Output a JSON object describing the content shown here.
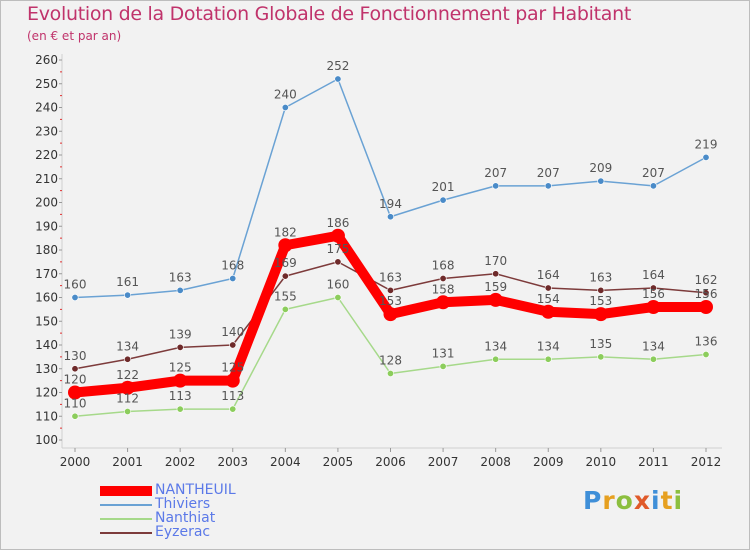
{
  "title": "Evolution de la Dotation Globale de Fonctionnement par Habitant",
  "subtitle": "(en € et par an)",
  "brand": {
    "text": "Proxiti",
    "letters": [
      {
        "ch": "P",
        "color": "#3f8fd8"
      },
      {
        "ch": "r",
        "color": "#e6a020"
      },
      {
        "ch": "o",
        "color": "#8cbf3f"
      },
      {
        "ch": "x",
        "color": "#e05a2a"
      },
      {
        "ch": "i",
        "color": "#3f8fd8"
      },
      {
        "ch": "t",
        "color": "#e6a020"
      },
      {
        "ch": "i",
        "color": "#8cbf3f"
      }
    ]
  },
  "chart_data": {
    "type": "line",
    "title": "Evolution de la Dotation Globale de Fonctionnement par Habitant",
    "subtitle": "(en € et par an)",
    "xlabel": "",
    "ylabel": "",
    "ylim": [
      100,
      260
    ],
    "ytick_step": 10,
    "grid": false,
    "legend_position": "bottom-left",
    "categories": [
      "2000",
      "2001",
      "2002",
      "2003",
      "2004",
      "2005",
      "2006",
      "2007",
      "2008",
      "2009",
      "2010",
      "2011",
      "2012"
    ],
    "series": [
      {
        "name": "Thiviers",
        "color": "#6aa2d4",
        "marker": "#4a8bc8",
        "label_color": "#555555",
        "emphasis": false,
        "values": [
          160,
          161,
          163,
          168,
          240,
          252,
          194,
          201,
          207,
          207,
          209,
          207,
          219
        ]
      },
      {
        "name": "Nanthiat",
        "color": "#a6d98a",
        "marker": "#8ccd5c",
        "label_color": "#555555",
        "emphasis": false,
        "values": [
          110,
          112,
          113,
          113,
          155,
          160,
          128,
          131,
          134,
          134,
          135,
          134,
          136
        ]
      },
      {
        "name": "Eyzerac",
        "color": "#7d3b3b",
        "marker": "#6e2a2a",
        "label_color": "#555555",
        "emphasis": false,
        "values": [
          130,
          134,
          139,
          140,
          169,
          175,
          163,
          168,
          170,
          164,
          163,
          164,
          162
        ]
      },
      {
        "name": "NANTHEUIL",
        "color": "#ff0000",
        "marker": "#ff0000",
        "label_color": "#555555",
        "emphasis": true,
        "values": [
          120,
          122,
          125,
          125,
          182,
          186,
          153,
          158,
          159,
          154,
          153,
          156,
          156
        ]
      }
    ],
    "legend": [
      {
        "name": "NANTHEUIL",
        "color": "#ff0000",
        "label_color": "#5b79e8",
        "emphasis": true
      },
      {
        "name": "Thiviers",
        "color": "#6aa2d4",
        "label_color": "#5b79e8",
        "emphasis": false
      },
      {
        "name": "Nanthiat",
        "color": "#a6d98a",
        "label_color": "#5b79e8",
        "emphasis": false
      },
      {
        "name": "Eyzerac",
        "color": "#7d3b3b",
        "label_color": "#5b79e8",
        "emphasis": false
      }
    ]
  }
}
